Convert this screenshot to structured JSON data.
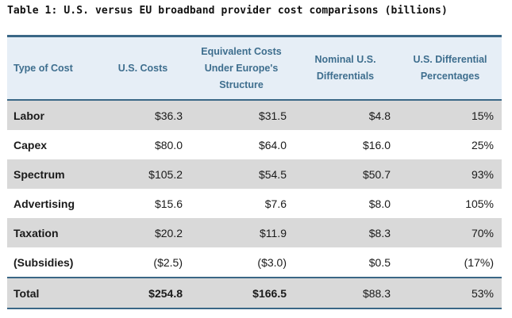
{
  "title": "Table 1: U.S. versus EU broadband provider cost comparisons (billions)",
  "header": {
    "col0": "Type of Cost",
    "col1": "U.S. Costs",
    "col2_line1": "Equivalent Costs",
    "col2_line2": "Under Europe's",
    "col2_line3": "Structure",
    "col3_line1": "Nominal U.S.",
    "col3_line2": "Differentials",
    "col4_line1": "U.S. Differential",
    "col4_line2": "Percentages"
  },
  "rows": [
    {
      "type": "Labor",
      "us": "$36.3",
      "eu": "$31.5",
      "nominal": "$4.8",
      "pct": "15%"
    },
    {
      "type": "Capex",
      "us": "$80.0",
      "eu": "$64.0",
      "nominal": "$16.0",
      "pct": "25%"
    },
    {
      "type": "Spectrum",
      "us": "$105.2",
      "eu": "$54.5",
      "nominal": "$50.7",
      "pct": "93%"
    },
    {
      "type": "Advertising",
      "us": "$15.6",
      "eu": "$7.6",
      "nominal": "$8.0",
      "pct": "105%"
    },
    {
      "type": "Taxation",
      "us": "$20.2",
      "eu": "$11.9",
      "nominal": "$8.3",
      "pct": "70%"
    },
    {
      "type": "(Subsidies)",
      "us": "($2.5)",
      "eu": "($3.0)",
      "nominal": "$0.5",
      "pct": "(17%)"
    }
  ],
  "total": {
    "type": "Total",
    "us": "$254.8",
    "eu": "$166.5",
    "nominal": "$88.3",
    "pct": "53%"
  },
  "colors": {
    "header_bg": "#e6eef6",
    "header_text": "#3e6e8e",
    "rule": "#3a6786",
    "shaded_row": "#d9d9d9"
  }
}
